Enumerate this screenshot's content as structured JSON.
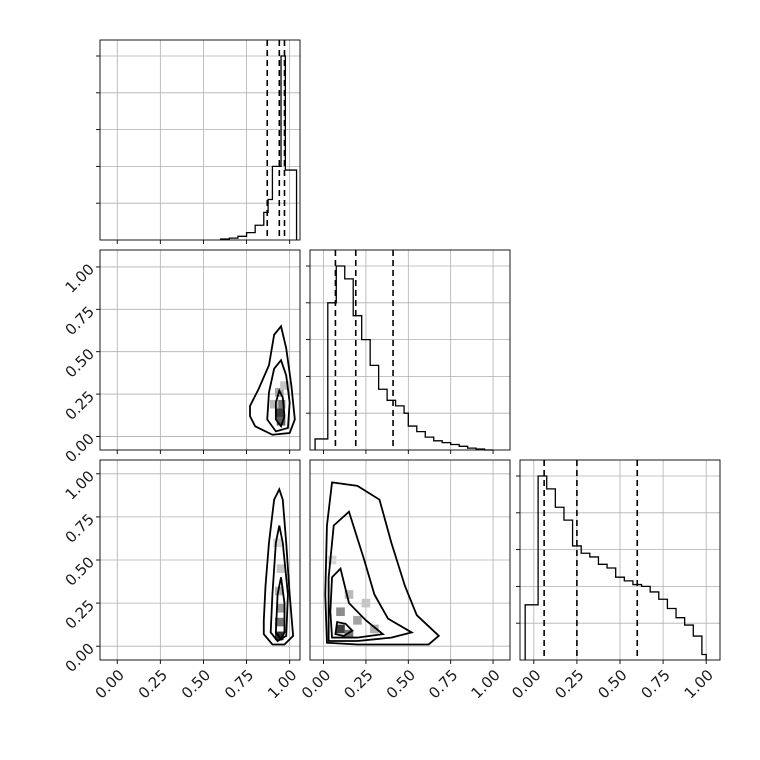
{
  "chart_data": {
    "type": "corner",
    "tick_labels": [
      "0.00",
      "0.25",
      "0.50",
      "0.75",
      "1.00"
    ],
    "grid": true,
    "parameters": [
      {
        "index": 0,
        "range": [
          -0.1,
          1.06
        ],
        "quantiles": [
          0.87,
          0.94,
          0.97
        ]
      },
      {
        "index": 1,
        "range": [
          -0.08,
          1.1
        ],
        "quantiles": [
          0.07,
          0.19,
          0.41
        ]
      },
      {
        "index": 2,
        "range": [
          -0.08,
          1.08
        ],
        "quantiles": [
          0.06,
          0.25,
          0.6
        ]
      }
    ],
    "histograms": [
      {
        "param": 0,
        "edges": [
          0.6,
          0.65,
          0.7,
          0.75,
          0.8,
          0.85,
          0.875,
          0.9,
          0.925,
          0.95,
          0.975,
          1.0,
          1.04
        ],
        "counts": [
          0.005,
          0.01,
          0.02,
          0.04,
          0.08,
          0.15,
          0.22,
          0.4,
          0.4,
          1.0,
          0.38,
          0.38
        ]
      },
      {
        "param": 1,
        "edges": [
          -0.05,
          0.0,
          0.025,
          0.05,
          0.075,
          0.1,
          0.125,
          0.15,
          0.175,
          0.2,
          0.225,
          0.25,
          0.275,
          0.3,
          0.325,
          0.35,
          0.375,
          0.4,
          0.425,
          0.45,
          0.475,
          0.5,
          0.55,
          0.6,
          0.65,
          0.7,
          0.75,
          0.8,
          0.85,
          0.9,
          0.95,
          1.0
        ],
        "counts": [
          0.06,
          0.06,
          0.8,
          0.8,
          1.0,
          1.0,
          0.93,
          0.93,
          0.73,
          0.73,
          0.6,
          0.6,
          0.46,
          0.46,
          0.33,
          0.33,
          0.27,
          0.27,
          0.24,
          0.24,
          0.2,
          0.13,
          0.1,
          0.07,
          0.05,
          0.04,
          0.03,
          0.02,
          0.01,
          0.005,
          0.0
        ]
      },
      {
        "param": 2,
        "edges": [
          -0.05,
          0.0,
          0.025,
          0.05,
          0.075,
          0.1,
          0.125,
          0.15,
          0.175,
          0.2,
          0.225,
          0.25,
          0.275,
          0.3,
          0.325,
          0.35,
          0.375,
          0.4,
          0.425,
          0.45,
          0.475,
          0.5,
          0.525,
          0.55,
          0.575,
          0.6,
          0.625,
          0.65,
          0.675,
          0.7,
          0.725,
          0.75,
          0.775,
          0.8,
          0.825,
          0.85,
          0.875,
          0.9,
          0.925,
          0.95,
          0.975,
          1.0
        ],
        "counts": [
          0.3,
          0.3,
          1.0,
          1.0,
          0.93,
          0.93,
          0.83,
          0.83,
          0.76,
          0.76,
          0.62,
          0.62,
          0.58,
          0.58,
          0.56,
          0.56,
          0.52,
          0.52,
          0.5,
          0.5,
          0.45,
          0.45,
          0.43,
          0.43,
          0.41,
          0.41,
          0.4,
          0.4,
          0.37,
          0.37,
          0.33,
          0.33,
          0.28,
          0.28,
          0.23,
          0.23,
          0.19,
          0.19,
          0.13,
          0.13,
          0.03
        ]
      }
    ],
    "scatter_panels": [
      {
        "x_param": 0,
        "y_param": 1,
        "contours": [
          [
            [
              0.77,
              0.12
            ],
            [
              0.8,
              0.06
            ],
            [
              0.9,
              0.01
            ],
            [
              1.0,
              0.02
            ],
            [
              1.03,
              0.1
            ],
            [
              1.01,
              0.3
            ],
            [
              0.98,
              0.52
            ],
            [
              0.95,
              0.65
            ],
            [
              0.91,
              0.6
            ],
            [
              0.88,
              0.42
            ],
            [
              0.82,
              0.28
            ],
            [
              0.77,
              0.18
            ]
          ],
          [
            [
              0.87,
              0.1
            ],
            [
              0.92,
              0.03
            ],
            [
              0.99,
              0.05
            ],
            [
              1.0,
              0.2
            ],
            [
              0.98,
              0.36
            ],
            [
              0.95,
              0.45
            ],
            [
              0.91,
              0.4
            ],
            [
              0.88,
              0.26
            ]
          ],
          [
            [
              0.92,
              0.1
            ],
            [
              0.95,
              0.06
            ],
            [
              0.97,
              0.12
            ],
            [
              0.96,
              0.23
            ],
            [
              0.94,
              0.27
            ],
            [
              0.92,
              0.2
            ]
          ]
        ],
        "density_cells": [
          [
            0.94,
            0.14,
            0.85
          ],
          [
            0.95,
            0.19,
            0.6
          ],
          [
            0.94,
            0.26,
            0.4
          ],
          [
            0.95,
            0.09,
            0.7
          ],
          [
            0.91,
            0.19,
            0.3
          ],
          [
            0.97,
            0.3,
            0.25
          ]
        ]
      },
      {
        "x_param": 0,
        "y_param": 2,
        "contours": [
          [
            [
              0.85,
              0.07
            ],
            [
              0.9,
              0.01
            ],
            [
              0.97,
              0.01
            ],
            [
              1.02,
              0.06
            ],
            [
              1.0,
              0.3
            ],
            [
              0.98,
              0.6
            ],
            [
              0.96,
              0.85
            ],
            [
              0.94,
              0.91
            ],
            [
              0.91,
              0.85
            ],
            [
              0.88,
              0.6
            ],
            [
              0.86,
              0.35
            ],
            [
              0.85,
              0.15
            ]
          ],
          [
            [
              0.89,
              0.08
            ],
            [
              0.93,
              0.03
            ],
            [
              0.98,
              0.06
            ],
            [
              0.99,
              0.3
            ],
            [
              0.96,
              0.6
            ],
            [
              0.94,
              0.7
            ],
            [
              0.92,
              0.6
            ],
            [
              0.9,
              0.3
            ]
          ],
          [
            [
              0.92,
              0.08
            ],
            [
              0.95,
              0.04
            ],
            [
              0.97,
              0.08
            ],
            [
              0.97,
              0.25
            ],
            [
              0.95,
              0.4
            ],
            [
              0.93,
              0.3
            ]
          ]
        ],
        "density_cells": [
          [
            0.94,
            0.06,
            0.9
          ],
          [
            0.94,
            0.14,
            0.6
          ],
          [
            0.95,
            0.22,
            0.45
          ],
          [
            0.94,
            0.32,
            0.35
          ],
          [
            0.95,
            0.45,
            0.25
          ],
          [
            0.93,
            0.6,
            0.18
          ]
        ]
      },
      {
        "x_param": 1,
        "y_param": 2,
        "contours": [
          [
            [
              0.02,
              0.02
            ],
            [
              0.2,
              0.01
            ],
            [
              0.4,
              0.01
            ],
            [
              0.62,
              0.01
            ],
            [
              0.68,
              0.06
            ],
            [
              0.55,
              0.18
            ],
            [
              0.48,
              0.35
            ],
            [
              0.4,
              0.6
            ],
            [
              0.33,
              0.85
            ],
            [
              0.2,
              0.93
            ],
            [
              0.05,
              0.95
            ],
            [
              0.02,
              0.7
            ],
            [
              0.01,
              0.3
            ]
          ],
          [
            [
              0.03,
              0.03
            ],
            [
              0.2,
              0.03
            ],
            [
              0.4,
              0.05
            ],
            [
              0.52,
              0.08
            ],
            [
              0.38,
              0.16
            ],
            [
              0.3,
              0.3
            ],
            [
              0.24,
              0.5
            ],
            [
              0.15,
              0.78
            ],
            [
              0.06,
              0.7
            ],
            [
              0.03,
              0.4
            ]
          ],
          [
            [
              0.05,
              0.05
            ],
            [
              0.2,
              0.05
            ],
            [
              0.35,
              0.07
            ],
            [
              0.25,
              0.15
            ],
            [
              0.15,
              0.25
            ],
            [
              0.1,
              0.45
            ],
            [
              0.05,
              0.4
            ],
            [
              0.04,
              0.2
            ]
          ],
          [
            [
              0.07,
              0.07
            ],
            [
              0.12,
              0.06
            ],
            [
              0.17,
              0.09
            ],
            [
              0.13,
              0.13
            ],
            [
              0.08,
              0.14
            ]
          ]
        ],
        "density_cells": [
          [
            0.1,
            0.1,
            0.85
          ],
          [
            0.15,
            0.07,
            0.6
          ],
          [
            0.1,
            0.2,
            0.5
          ],
          [
            0.2,
            0.15,
            0.4
          ],
          [
            0.15,
            0.3,
            0.3
          ],
          [
            0.25,
            0.25,
            0.25
          ],
          [
            0.05,
            0.5,
            0.18
          ],
          [
            0.3,
            0.1,
            0.35
          ]
        ]
      }
    ]
  }
}
